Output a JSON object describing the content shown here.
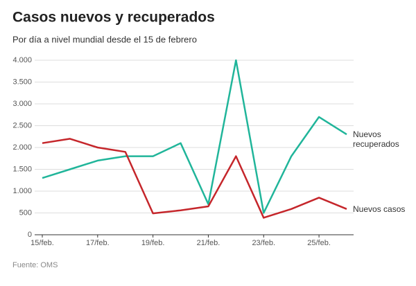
{
  "title": "Casos nuevos y recuperados",
  "subtitle": "Por día a nivel mundial desde el 15 de febrero",
  "source": "Fuente: OMS",
  "chart_data": {
    "type": "line",
    "categories": [
      "15/feb.",
      null,
      "17/feb.",
      null,
      "19/feb.",
      null,
      "21/feb.",
      null,
      "23/feb.",
      null,
      "25/feb.",
      null
    ],
    "series": [
      {
        "name": "Nuevos recuperados",
        "color": "#20b59a",
        "values": [
          1300,
          1500,
          1700,
          1800,
          1800,
          2100,
          700,
          4000,
          500,
          1800,
          2700,
          2300
        ]
      },
      {
        "name": "Nuevos casos",
        "color": "#c5262b",
        "values": [
          2100,
          2200,
          2000,
          1900,
          490,
          560,
          650,
          1800,
          390,
          590,
          850,
          590
        ]
      }
    ],
    "ylim": [
      0,
      4000
    ],
    "yticks": [
      0,
      500,
      {
        "value": 1000,
        "label": "1.000"
      },
      {
        "value": 1500,
        "label": "1.500"
      },
      {
        "value": 2000,
        "label": "2.000"
      },
      {
        "value": 2500,
        "label": "2.500"
      },
      {
        "value": 3000,
        "label": "3.000"
      },
      {
        "value": 3500,
        "label": "3.500"
      },
      {
        "value": 4000,
        "label": "4.000"
      }
    ],
    "grid": true
  }
}
